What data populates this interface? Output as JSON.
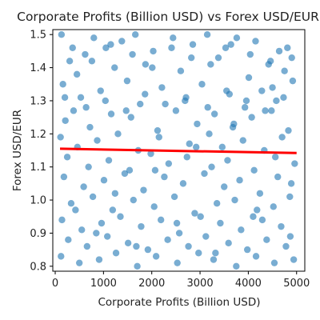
{
  "chart_data": {
    "type": "scatter",
    "title": "Corporate Profits (Billion USD) vs Forex USD/EUR",
    "xlabel": "Corporate Profits (Billion USD)",
    "ylabel": "Forex USD/EUR",
    "xlim": [
      -50,
      5170
    ],
    "ylim": [
      0.785,
      1.515
    ],
    "xticks": [
      0,
      1000,
      2000,
      3000,
      4000,
      5000
    ],
    "xtick_labels": [
      "0",
      "1000",
      "2000",
      "3000",
      "4000",
      "5000"
    ],
    "yticks": [
      0.8,
      0.9,
      1.0,
      1.1,
      1.2,
      1.3,
      1.4,
      1.5
    ],
    "ytick_labels": [
      "0.8",
      "0.9",
      "1.0",
      "1.1",
      "1.2",
      "1.3",
      "1.4",
      "1.5"
    ],
    "grid": false,
    "point_color": "#1f77b4",
    "point_alpha": 0.6,
    "regression_color": "#ff0000",
    "regression_line": {
      "x": [
        100,
        5000
      ],
      "y": [
        1.155,
        1.142
      ]
    },
    "series": [
      {
        "x": [
          130,
          620,
          800,
          1050,
          1380,
          1660,
          2030,
          2440,
          2850,
          3150,
          3530,
          3760,
          4150,
          4640,
          4900,
          300,
          450,
          1230,
          1870,
          2600,
          3380,
          4010,
          4420,
          4750,
          160,
          530,
          940,
          1490,
          1760,
          2210,
          2690,
          3040,
          3610,
          3930,
          4280,
          4580,
          4920,
          210,
          380,
          720,
          1160,
          1570,
          2120,
          2500,
          2940,
          3300,
          3680,
          4070,
          4480,
          4830,
          110,
          460,
          870,
          1300,
          1720,
          2150,
          2780,
          3190,
          3460,
          3890,
          4330,
          4700,
          250,
          690,
          1110,
          1540,
          1980,
          2350,
          2730,
          3240,
          3570,
          4120,
          4560,
          4960,
          180,
          590,
          1010,
          1440,
          1830,
          2260,
          2650,
          3090,
          3500,
          3820,
          4240,
          4610,
          4890,
          330,
          780,
          1190,
          1620,
          2050,
          2470,
          2890,
          3350,
          3720,
          4180,
          4520,
          4860,
          140,
          550,
          960,
          1350,
          1780,
          2190,
          2570,
          3010,
          3420,
          3850,
          4290,
          4680,
          270,
          660,
          1080,
          1510,
          1920,
          2330,
          2760,
          3120,
          3590,
          3980,
          4380,
          4780,
          120,
          500,
          910,
          1260,
          1700,
          2090,
          2530,
          2970,
          3280,
          3750,
          4160,
          4540,
          4940,
          360,
          760,
          1150,
          1600,
          2010,
          2410,
          2820,
          3220,
          3640,
          4040,
          4460,
          4810,
          200,
          640,
          1040,
          1470,
          1860,
          2280,
          2710,
          3160,
          3550,
          3960,
          4350,
          4730,
          420,
          850,
          1240,
          1680,
          2070,
          2520,
          2920,
          3320,
          3700,
          4100,
          4500,
          4870
        ],
        "y": [
          1.5,
          1.44,
          1.49,
          1.46,
          1.48,
          1.5,
          1.45,
          1.49,
          1.47,
          1.5,
          1.46,
          1.49,
          1.48,
          1.45,
          1.43,
          1.42,
          1.38,
          1.4,
          1.41,
          1.39,
          1.43,
          1.37,
          1.41,
          1.39,
          1.35,
          1.31,
          1.33,
          1.36,
          1.29,
          1.34,
          1.3,
          1.35,
          1.32,
          1.28,
          1.33,
          1.3,
          1.36,
          1.24,
          1.27,
          1.22,
          1.26,
          1.25,
          1.21,
          1.27,
          1.23,
          1.26,
          1.22,
          1.25,
          1.27,
          1.21,
          1.19,
          1.16,
          1.18,
          1.2,
          1.15,
          1.19,
          1.17,
          1.2,
          1.16,
          1.18,
          1.15,
          1.19,
          1.13,
          1.1,
          1.12,
          1.09,
          1.14,
          1.11,
          1.13,
          1.1,
          1.12,
          1.09,
          1.13,
          1.11,
          1.07,
          1.04,
          1.06,
          1.08,
          1.03,
          1.07,
          1.05,
          1.08,
          1.04,
          1.06,
          1.02,
          1.07,
          1.05,
          0.99,
          1.01,
          0.97,
          1.0,
          0.98,
          1.01,
          0.96,
          0.99,
          1.0,
          0.97,
          0.98,
          1.01,
          0.94,
          0.91,
          0.93,
          0.95,
          0.92,
          0.94,
          0.9,
          0.95,
          0.93,
          0.91,
          0.94,
          0.92,
          0.88,
          0.86,
          0.89,
          0.87,
          0.85,
          0.88,
          0.86,
          0.89,
          0.87,
          0.85,
          0.88,
          0.86,
          0.83,
          0.81,
          0.82,
          0.84,
          0.8,
          0.83,
          0.81,
          0.84,
          0.82,
          0.8,
          0.83,
          0.81,
          0.82,
          1.46,
          1.42,
          1.47,
          1.44,
          1.4,
          1.46,
          1.43,
          1.41,
          1.47,
          1.44,
          1.42,
          1.46,
          1.31,
          1.28,
          1.3,
          1.27,
          1.32,
          1.29,
          1.31,
          1.28,
          1.33,
          1.3,
          1.27,
          1.31,
          0.97,
          0.9,
          1.02,
          0.86,
          1.09,
          0.93,
          1.16,
          0.84,
          1.23,
          0.95,
          1.34,
          0.89
        ]
      }
    ]
  }
}
